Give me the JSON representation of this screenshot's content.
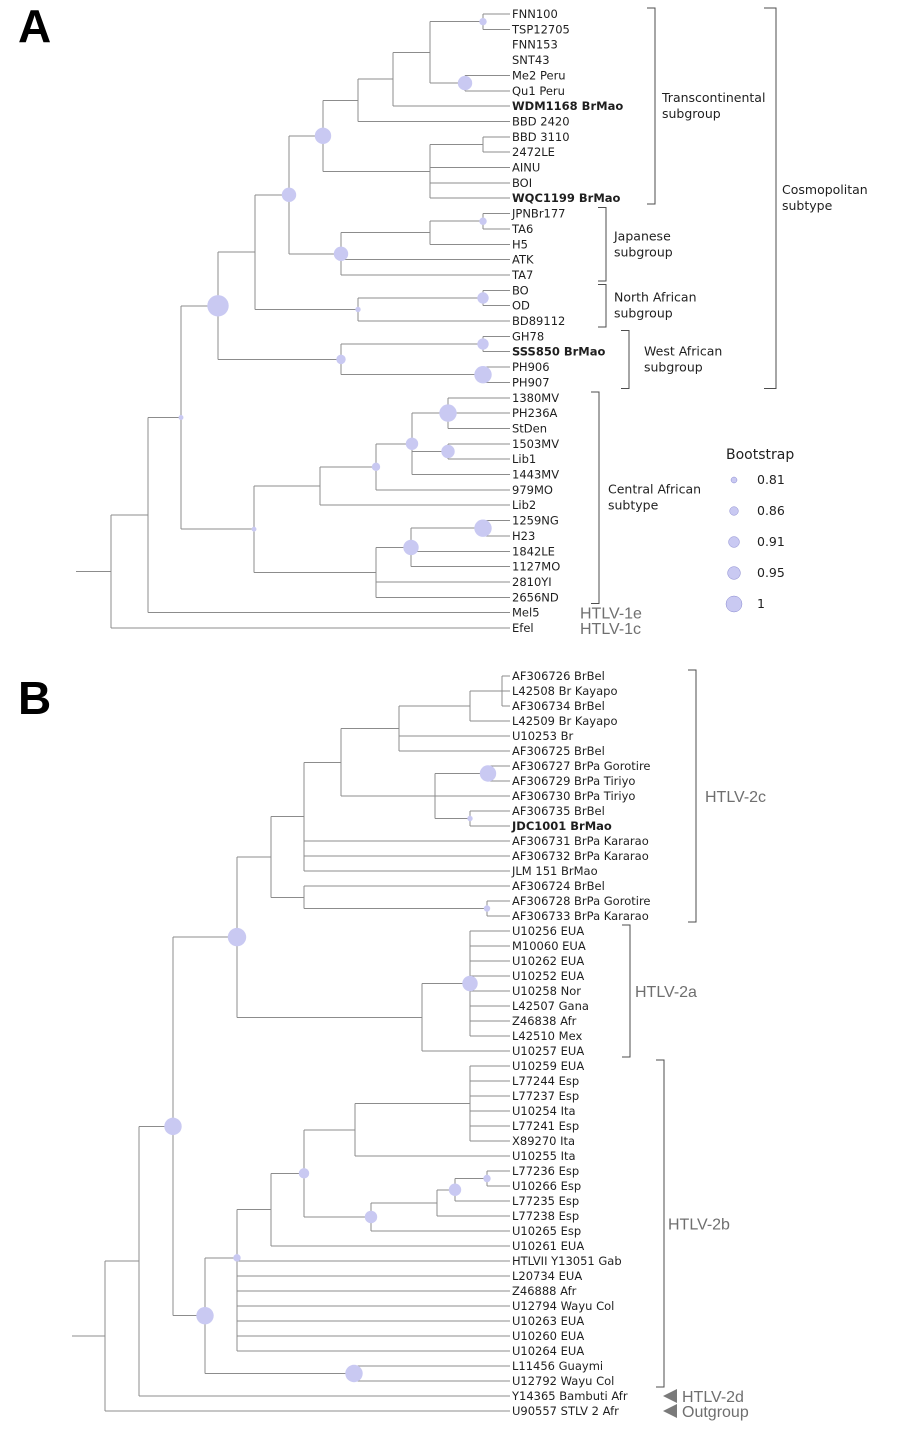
{
  "colors": {
    "node": "#c9c9f2",
    "branch": "#8c8c8c",
    "text": "#1f1f1f",
    "gray_label": "#6f6f6f",
    "arrow": "#7a7a7a"
  },
  "panels": [
    {
      "label": "A",
      "leaves": [
        "FNN100",
        "TSP12705",
        "FNN153",
        "SNT43",
        "Me2 Peru",
        "Qu1 Peru",
        "WDM1168 BrMao",
        "BBD 2420",
        "BBD 3110",
        "2472LE",
        "AINU",
        "BOI",
        "WQC1199 BrMao",
        "JPNBr177",
        "TA6",
        "H5",
        "ATK",
        "TA7",
        "BO",
        "OD",
        "BD89112",
        "GH78",
        "SSS850 BrMao",
        "PH906",
        "PH907",
        "1380MV",
        "PH236A",
        "StDen",
        "1503MV",
        "Lib1",
        "1443MV",
        "979MO",
        "Lib2",
        "1259NG",
        "H23",
        "1842LE",
        "1127MO",
        "2810YI",
        "2656ND",
        "Mel5",
        "Efel"
      ],
      "bold_leaves": [
        "WDM1168 BrMao",
        "WQC1199 BrMao",
        "SSS850 BrMao"
      ],
      "groups": [
        {
          "label": [
            "Transcontinental",
            "subgroup"
          ],
          "from": "FNN100",
          "to": "WQC1199 BrMao"
        },
        {
          "label": [
            "Japanese",
            "subgroup"
          ],
          "from": "JPNBr177",
          "to": "TA7"
        },
        {
          "label": [
            "North African",
            "subgroup"
          ],
          "from": "BO",
          "to": "BD89112"
        },
        {
          "label": [
            "West African",
            "subgroup"
          ],
          "from": "GH78",
          "to": "PH907"
        },
        {
          "label": [
            "Central African",
            "subtype"
          ],
          "from": "1380MV",
          "to": "2656ND"
        },
        {
          "label": [
            "Cosmopolitan",
            "subtype"
          ],
          "from": "FNN100",
          "to": "PH907"
        }
      ],
      "tip_labels": [
        {
          "leaf": "Mel5",
          "text": "HTLV-1e"
        },
        {
          "leaf": "Efel",
          "text": "HTLV-1c"
        }
      ],
      "legend": {
        "title": "Bootstrap",
        "values": [
          "0.81",
          "0.86",
          "0.91",
          "0.95",
          "1"
        ]
      }
    },
    {
      "label": "B",
      "leaves": [
        "AF306726 BrBel",
        "L42508 Br Kayapo",
        "AF306734 BrBel",
        "L42509 Br Kayapo",
        "U10253 Br",
        "AF306725 BrBel",
        "AF306727 BrPa Gorotire",
        "AF306729 BrPa Tiriyo",
        "AF306730 BrPa Tiriyo",
        "AF306735 BrBel",
        "JDC1001 BrMao",
        "AF306731 BrPa Kararao",
        "AF306732 BrPa Kararao",
        "JLM 151 BrMao",
        "AF306724 BrBel",
        "AF306728 BrPa Gorotire",
        "AF306733 BrPa Kararao",
        "U10256 EUA",
        "M10060 EUA",
        "U10262 EUA",
        "U10252 EUA",
        "U10258 Nor",
        "L42507 Gana",
        "Z46838 Afr",
        "L42510 Mex",
        "U10257 EUA",
        "U10259 EUA",
        "L77244 Esp",
        "L77237 Esp",
        "U10254 Ita",
        "L77241 Esp",
        "X89270 Ita",
        "U10255 Ita",
        "L77236 Esp",
        "U10266 Esp",
        "L77235 Esp",
        "L77238 Esp",
        "U10265 Esp",
        "U10261 EUA",
        "HTLVII Y13051 Gab",
        "L20734 EUA",
        "Z46888 Afr",
        "U12794 Wayu Col",
        "U10263 EUA",
        "U10260 EUA",
        "U10264 EUA",
        "L11456 Guaymi",
        "U12792 Wayu Col",
        "Y14365 Bambuti Afr",
        "U90557 STLV 2 Afr"
      ],
      "bold_leaves": [
        "JDC1001 BrMao"
      ],
      "groups": [
        {
          "label": [
            "HTLV-2c"
          ],
          "from": "AF306726 BrBel",
          "to": "AF306733 BrPa Kararao"
        },
        {
          "label": [
            "HTLV-2a"
          ],
          "from": "U10256 EUA",
          "to": "U10257 EUA"
        },
        {
          "label": [
            "HTLV-2b"
          ],
          "from": "U10259 EUA",
          "to": "U12792 Wayu Col"
        }
      ],
      "tip_labels": [
        {
          "leaf": "Y14365 Bambuti Afr",
          "text": "HTLV-2d"
        },
        {
          "leaf": "U90557 STLV 2 Afr",
          "text": "Outgroup"
        }
      ]
    }
  ]
}
